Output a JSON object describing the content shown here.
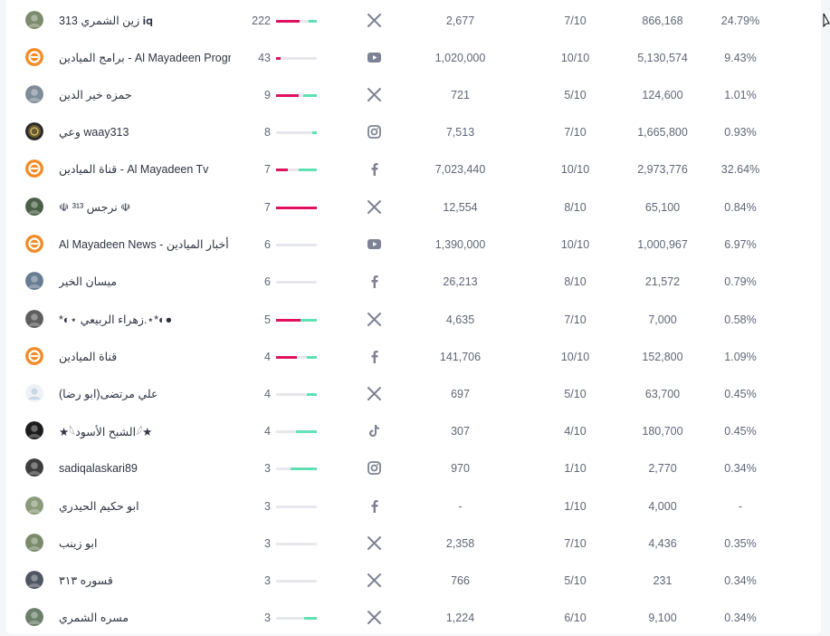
{
  "rows": [
    {
      "author": "زين الشمري 313 𝐢𝐪",
      "posts": "222",
      "platform": "x-icon",
      "followers": "2,677",
      "score": "7/10",
      "reach": "866,168",
      "share": "24.79%",
      "sentiment": {
        "neg": 0.58,
        "pos": 0.2
      },
      "avatar": "photo",
      "avatar_color": "#7c8a6d"
    },
    {
      "author": "برامج الميادين - Al Mayadeen Progra",
      "posts": "43",
      "platform": "youtube-icon",
      "followers": "1,020,000",
      "score": "10/10",
      "reach": "5,130,574",
      "share": "9.43%",
      "sentiment": {
        "neg": 0.1,
        "pos": 0.0
      },
      "avatar": "mayadeen",
      "avatar_color": "#f28c28"
    },
    {
      "author": "حمزه خير الدين",
      "posts": "9",
      "platform": "x-icon",
      "followers": "721",
      "score": "5/10",
      "reach": "124,600",
      "share": "1.01%",
      "sentiment": {
        "neg": 0.55,
        "pos": 0.33
      },
      "avatar": "photo",
      "avatar_color": "#7f8c99"
    },
    {
      "author": "وعي waay313",
      "posts": "8",
      "platform": "instagram-icon",
      "followers": "7,513",
      "score": "7/10",
      "reach": "1,665,800",
      "share": "0.93%",
      "sentiment": {
        "neg": 0.0,
        "pos": 0.12
      },
      "avatar": "logo",
      "avatar_color": "#6b5a2c"
    },
    {
      "author": "قناة الميادين - Al Mayadeen Tv",
      "posts": "7",
      "platform": "facebook-icon",
      "followers": "7,023,440",
      "score": "10/10",
      "reach": "2,973,776",
      "share": "32.64%",
      "sentiment": {
        "neg": 0.28,
        "pos": 0.45
      },
      "avatar": "mayadeen",
      "avatar_color": "#f28c28"
    },
    {
      "author": "☫ نرجس ³¹³ ☫",
      "posts": "7",
      "platform": "x-icon",
      "followers": "12,554",
      "score": "8/10",
      "reach": "65,100",
      "share": "0.84%",
      "sentiment": {
        "neg": 1.0,
        "pos": 0.0
      },
      "avatar": "photo",
      "avatar_color": "#4a6147"
    },
    {
      "author": "Al Mayadeen News - أخبار الميادين",
      "posts": "6",
      "platform": "youtube-icon",
      "followers": "1,390,000",
      "score": "10/10",
      "reach": "1,000,967",
      "share": "6.97%",
      "sentiment": {
        "neg": 0.0,
        "pos": 0.0
      },
      "avatar": "mayadeen",
      "avatar_color": "#f28c28"
    },
    {
      "author": "ميسان الخير",
      "posts": "6",
      "platform": "facebook-icon",
      "followers": "26,213",
      "score": "8/10",
      "reach": "21,572",
      "share": "0.79%",
      "sentiment": {
        "neg": 0.0,
        "pos": 0.0
      },
      "avatar": "photo",
      "avatar_color": "#687d93"
    },
    {
      "author": "*◐⋆ زهراء الربيعي.⋆*◐●",
      "posts": "5",
      "platform": "x-icon",
      "followers": "4,635",
      "score": "7/10",
      "reach": "7,000",
      "share": "0.58%",
      "sentiment": {
        "neg": 0.6,
        "pos": 0.4
      },
      "avatar": "photo",
      "avatar_color": "#5e5e5e"
    },
    {
      "author": "قناة الميادين",
      "posts": "4",
      "platform": "facebook-icon",
      "followers": "141,706",
      "score": "10/10",
      "reach": "152,800",
      "share": "1.09%",
      "sentiment": {
        "neg": 0.5,
        "pos": 0.25
      },
      "avatar": "mayadeen",
      "avatar_color": "#f28c28"
    },
    {
      "author": "علي مرتضى(ابو رضا)",
      "posts": "4",
      "platform": "x-icon",
      "followers": "697",
      "score": "5/10",
      "reach": "63,700",
      "share": "0.45%",
      "sentiment": {
        "neg": 0.0,
        "pos": 0.25
      },
      "avatar": "default",
      "avatar_color": "#c9d6e3"
    },
    {
      "author": "★𓆩الشبح الأسود𓆪★",
      "posts": "4",
      "platform": "tiktok-icon",
      "followers": "307",
      "score": "4/10",
      "reach": "180,700",
      "share": "0.45%",
      "sentiment": {
        "neg": 0.0,
        "pos": 0.5
      },
      "avatar": "photo",
      "avatar_color": "#1c1c1c"
    },
    {
      "author": "sadiqalaskari89",
      "posts": "3",
      "platform": "instagram-icon",
      "followers": "970",
      "score": "1/10",
      "reach": "2,770",
      "share": "0.34%",
      "sentiment": {
        "neg": 0.0,
        "pos": 0.65
      },
      "avatar": "photo",
      "avatar_color": "#3d3d3d"
    },
    {
      "author": "ابو حكيم الحيدري",
      "posts": "3",
      "platform": "facebook-icon",
      "followers": "-",
      "score": "1/10",
      "reach": "4,000",
      "share": "-",
      "sentiment": {
        "neg": 0.0,
        "pos": 0.0
      },
      "avatar": "photo",
      "avatar_color": "#8a9a7a"
    },
    {
      "author": "ابو زينب",
      "posts": "3",
      "platform": "x-icon",
      "followers": "2,358",
      "score": "7/10",
      "reach": "4,436",
      "share": "0.35%",
      "sentiment": {
        "neg": 0.0,
        "pos": 0.0
      },
      "avatar": "photo",
      "avatar_color": "#7a8a6a"
    },
    {
      "author": "قسوره ٣١٣",
      "posts": "3",
      "platform": "x-icon",
      "followers": "766",
      "score": "5/10",
      "reach": "231",
      "share": "0.34%",
      "sentiment": {
        "neg": 0.0,
        "pos": 0.0
      },
      "avatar": "photo",
      "avatar_color": "#4f5661"
    },
    {
      "author": "مسره الشمري",
      "posts": "3",
      "platform": "x-icon",
      "followers": "1,224",
      "score": "6/10",
      "reach": "9,100",
      "share": "0.34%",
      "sentiment": {
        "neg": 0.0,
        "pos": 0.3
      },
      "avatar": "photo",
      "avatar_color": "#6b7f6a"
    }
  ],
  "colors": {
    "negative": "#e0115f",
    "positive": "#5fe1b2",
    "neutral": "#e6e7ec",
    "icon": "#7d8294"
  }
}
